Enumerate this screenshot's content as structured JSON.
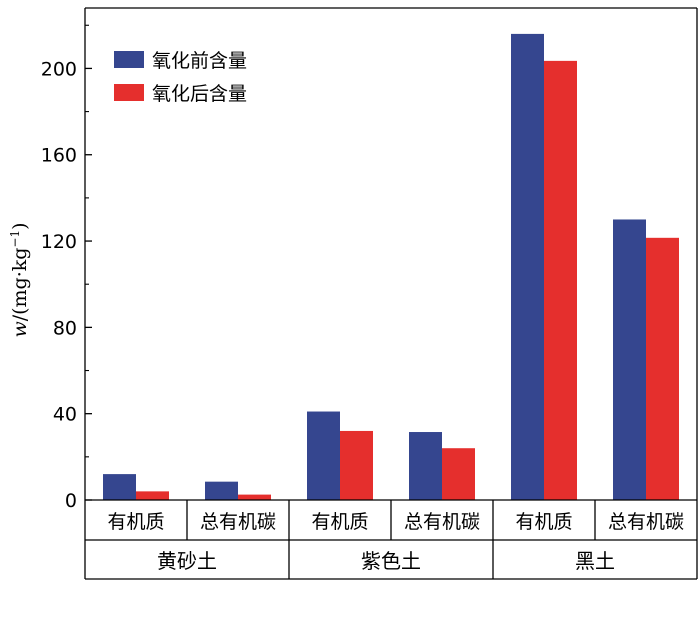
{
  "chart_data": {
    "type": "bar",
    "ylabel_var": "w",
    "ylabel_unit": "/(mg·kg",
    "ylabel_exp": "−1",
    "ylabel_close": ")",
    "ylim": [
      0,
      228
    ],
    "yticks": [
      0,
      40,
      80,
      120,
      160,
      200
    ],
    "groups": [
      {
        "name": "黄砂土",
        "categories": [
          "有机质",
          "总有机碳"
        ]
      },
      {
        "name": "紫色土",
        "categories": [
          "有机质",
          "总有机碳"
        ]
      },
      {
        "name": "黑土",
        "categories": [
          "有机质",
          "总有机碳"
        ]
      }
    ],
    "series": [
      {
        "name": "氧化前含量",
        "color": "#35468f",
        "values": [
          12,
          8.5,
          41,
          31.5,
          216,
          130
        ]
      },
      {
        "name": "氧化后含量",
        "color": "#e52f2d",
        "values": [
          4,
          2.5,
          32,
          24,
          203.5,
          121.5
        ]
      }
    ],
    "legend_position": "top-left",
    "grid": false
  }
}
